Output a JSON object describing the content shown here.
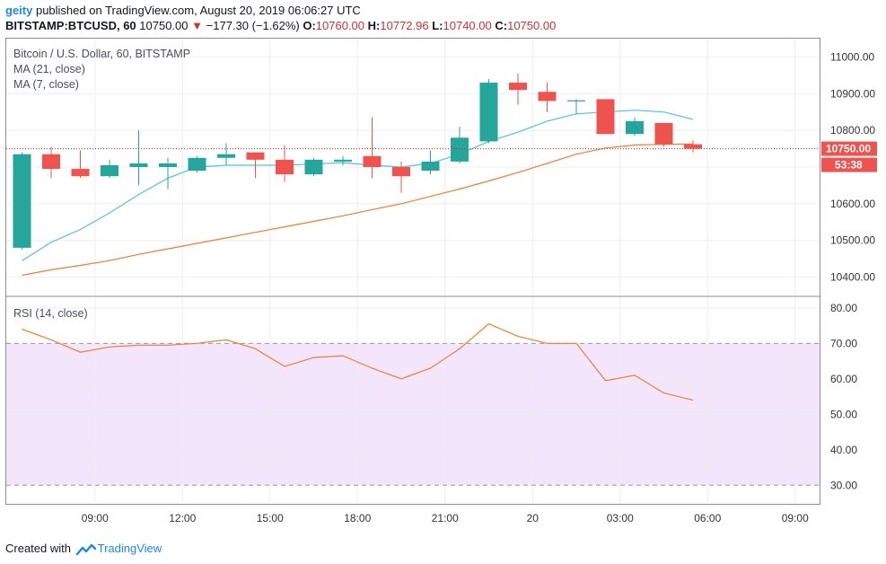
{
  "header": {
    "user": "geity",
    "published_text": "published on TradingView.com, August 20, 2019 06:06:27 UTC",
    "symbol": "BITSTAMP:BTCUSD, 60",
    "last": "10750.00",
    "change": "−177.30 (−1.62%)",
    "open_label": "O:",
    "open": "10760.00",
    "high_label": "H:",
    "high": "10772.96",
    "low_label": "L:",
    "low": "10740.00",
    "close_label": "C:",
    "close": "10750.00"
  },
  "legend": {
    "title": "Bitcoin / U.S. Dollar, 60, BITSTAMP",
    "ma21": "MA (21, close)",
    "ma7": "MA (7, close)",
    "rsi": "RSI (14, close)"
  },
  "footer": {
    "created_with": "Created with",
    "brand": "TradingView"
  },
  "colors": {
    "up": "#26a69a",
    "down": "#ef5350",
    "ma7": "#4fc3d9",
    "ma21": "#f57c2b",
    "rsi_line": "#f57c2b",
    "rsi_band": "#f3e5fb",
    "price_line": "#c62828"
  },
  "chart_data": [
    {
      "type": "candlestick",
      "title": "Bitcoin / U.S. Dollar, 60, BITSTAMP",
      "ylim": [
        10350,
        11050
      ],
      "y_ticks": [
        10400,
        10500,
        10600,
        10700,
        10800,
        10900,
        11000
      ],
      "y_tick_labels": [
        "10400.00",
        "10500.00",
        "10600.00",
        "10700.00",
        "10800.00",
        "10900.00",
        "11000.00"
      ],
      "x_ticks": [
        2.5,
        5.5,
        8.5,
        11.5,
        14.5,
        17.5,
        20.5,
        23.5,
        26.5
      ],
      "x_tick_labels": [
        "09:00",
        "12:00",
        "15:00",
        "18:00",
        "21:00",
        "20",
        "03:00",
        "06:00",
        "09:00"
      ],
      "last_price_label": "10750.00",
      "countdown_label": "53:38",
      "candles": [
        {
          "o": 10480,
          "h": 10740,
          "l": 10475,
          "c": 10735
        },
        {
          "o": 10735,
          "h": 10755,
          "l": 10670,
          "c": 10695
        },
        {
          "o": 10695,
          "h": 10745,
          "l": 10670,
          "c": 10675
        },
        {
          "o": 10675,
          "h": 10720,
          "l": 10670,
          "c": 10705
        },
        {
          "o": 10700,
          "h": 10800,
          "l": 10650,
          "c": 10710
        },
        {
          "o": 10700,
          "h": 10725,
          "l": 10640,
          "c": 10710
        },
        {
          "o": 10690,
          "h": 10730,
          "l": 10685,
          "c": 10725
        },
        {
          "o": 10725,
          "h": 10765,
          "l": 10705,
          "c": 10735
        },
        {
          "o": 10740,
          "h": 10740,
          "l": 10670,
          "c": 10720
        },
        {
          "o": 10720,
          "h": 10760,
          "l": 10660,
          "c": 10680
        },
        {
          "o": 10680,
          "h": 10725,
          "l": 10675,
          "c": 10720
        },
        {
          "o": 10715,
          "h": 10730,
          "l": 10705,
          "c": 10720
        },
        {
          "o": 10730,
          "h": 10835,
          "l": 10670,
          "c": 10700
        },
        {
          "o": 10700,
          "h": 10715,
          "l": 10630,
          "c": 10675
        },
        {
          "o": 10690,
          "h": 10745,
          "l": 10680,
          "c": 10715
        },
        {
          "o": 10715,
          "h": 10810,
          "l": 10710,
          "c": 10780
        },
        {
          "o": 10770,
          "h": 10940,
          "l": 10765,
          "c": 10930
        },
        {
          "o": 10930,
          "h": 10955,
          "l": 10870,
          "c": 10910
        },
        {
          "o": 10905,
          "h": 10930,
          "l": 10850,
          "c": 10880
        },
        {
          "o": 10880,
          "h": 10885,
          "l": 10845,
          "c": 10882
        },
        {
          "o": 10885,
          "h": 10885,
          "l": 10790,
          "c": 10790
        },
        {
          "o": 10790,
          "h": 10835,
          "l": 10785,
          "c": 10825
        },
        {
          "o": 10820,
          "h": 10820,
          "l": 10755,
          "c": 10762
        },
        {
          "o": 10762,
          "h": 10773,
          "l": 10740,
          "c": 10750
        }
      ],
      "ma7": [
        10445,
        10495,
        10530,
        10575,
        10625,
        10670,
        10700,
        10705,
        10705,
        10705,
        10708,
        10712,
        10705,
        10700,
        10710,
        10735,
        10770,
        10795,
        10825,
        10845,
        10850,
        10855,
        10850,
        10830
      ],
      "ma21": [
        10405,
        10420,
        10432,
        10445,
        10462,
        10477,
        10492,
        10507,
        10522,
        10537,
        10552,
        10567,
        10584,
        10600,
        10620,
        10640,
        10662,
        10685,
        10710,
        10735,
        10752,
        10760,
        10762,
        10763
      ]
    },
    {
      "type": "line",
      "title": "RSI (14, close)",
      "ylim": [
        25,
        83
      ],
      "y_ticks": [
        30,
        40,
        50,
        60,
        70,
        80
      ],
      "y_tick_labels": [
        "30.00",
        "40.00",
        "50.00",
        "60.00",
        "70.00",
        "80.00"
      ],
      "band": [
        30,
        70
      ],
      "values": [
        74,
        71,
        67.5,
        69,
        69.5,
        69.5,
        70,
        71,
        68.5,
        63.5,
        66,
        66.5,
        63,
        60,
        63,
        68.5,
        75.5,
        72,
        70,
        70,
        59.5,
        61,
        56,
        54
      ]
    }
  ]
}
